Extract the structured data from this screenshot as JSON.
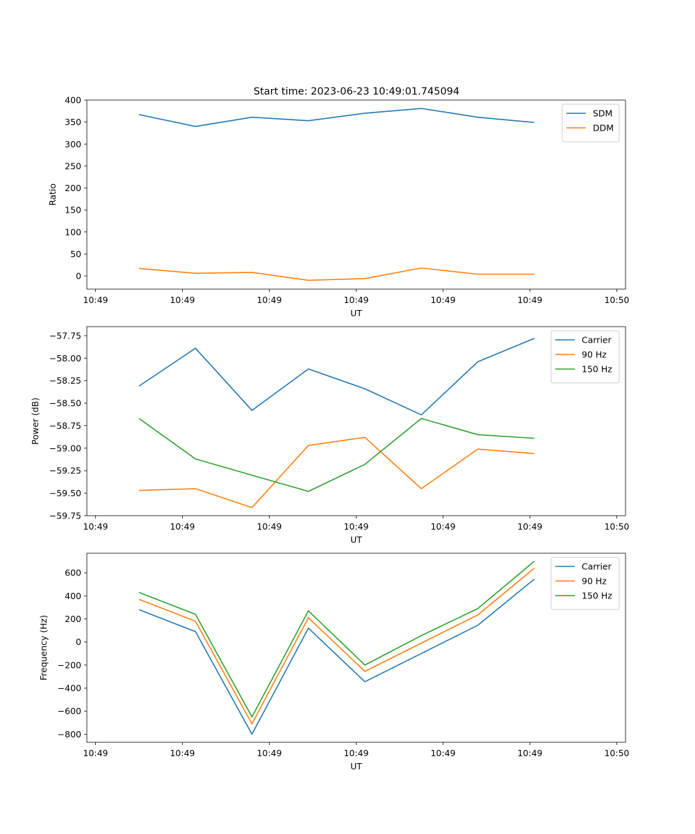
{
  "title": "Start time: 2023-06-23 10:49:01.745094",
  "colors": {
    "blue": "#1f77b4",
    "orange": "#ff7f0e",
    "green": "#2ca02c"
  },
  "chart_data": [
    {
      "type": "line",
      "ylabel": "Ratio",
      "xlabel": "UT",
      "ylim": [
        -30,
        400
      ],
      "yticks": [
        0,
        50,
        100,
        150,
        200,
        250,
        300,
        350,
        400
      ],
      "xlim": [
        0,
        6.2
      ],
      "xticks": [
        0.1,
        1.1,
        2.1,
        3.1,
        4.1,
        5.1,
        6.1
      ],
      "xtick_labels": [
        "10:49",
        "10:49",
        "10:49",
        "10:49",
        "10:49",
        "10:49",
        "10:50"
      ],
      "x": [
        0.6,
        1.25,
        1.9,
        2.55,
        3.2,
        3.85,
        4.5,
        5.15
      ],
      "legend": "top-right",
      "series": [
        {
          "name": "SDM",
          "color": "#1f77b4",
          "values": [
            367,
            340,
            361,
            353,
            370,
            381,
            361,
            349
          ]
        },
        {
          "name": "DDM",
          "color": "#ff7f0e",
          "values": [
            17,
            6,
            8,
            -10,
            -6,
            18,
            4,
            4
          ]
        }
      ]
    },
    {
      "type": "line",
      "ylabel": "Power (dB)",
      "xlabel": "UT",
      "ylim": [
        -59.75,
        -57.65
      ],
      "yticks": [
        -59.75,
        -59.5,
        -59.25,
        -59.0,
        -58.75,
        -58.5,
        -58.25,
        -58.0,
        -57.75
      ],
      "ytick_labels": [
        "−59.75",
        "−59.50",
        "−59.25",
        "−59.00",
        "−58.75",
        "−58.50",
        "−58.25",
        "−58.00",
        "−57.75"
      ],
      "xlim": [
        0,
        6.2
      ],
      "xticks": [
        0.1,
        1.1,
        2.1,
        3.1,
        4.1,
        5.1,
        6.1
      ],
      "xtick_labels": [
        "10:49",
        "10:49",
        "10:49",
        "10:49",
        "10:49",
        "10:49",
        "10:50"
      ],
      "x": [
        0.6,
        1.25,
        1.9,
        2.55,
        3.2,
        3.85,
        4.5,
        5.15
      ],
      "legend": "top-right",
      "series": [
        {
          "name": "Carrier",
          "color": "#1f77b4",
          "values": [
            -58.31,
            -57.89,
            -58.58,
            -58.12,
            -58.34,
            -58.63,
            -58.04,
            -57.78
          ]
        },
        {
          "name": "90 Hz",
          "color": "#ff7f0e",
          "values": [
            -59.47,
            -59.45,
            -59.66,
            -58.97,
            -58.88,
            -59.45,
            -59.01,
            -59.06
          ]
        },
        {
          "name": "150 Hz",
          "color": "#2ca02c",
          "values": [
            -58.67,
            -59.12,
            -59.3,
            -59.48,
            -59.18,
            -58.67,
            -58.85,
            -58.89
          ]
        }
      ]
    },
    {
      "type": "line",
      "ylabel": "Frequency (Hz)",
      "xlabel": "UT",
      "ylim": [
        -870,
        770
      ],
      "yticks": [
        -800,
        -600,
        -400,
        -200,
        0,
        200,
        400,
        600
      ],
      "ytick_labels": [
        "−800",
        "−600",
        "−400",
        "−200",
        "0",
        "200",
        "400",
        "600"
      ],
      "xlim": [
        0,
        6.2
      ],
      "xticks": [
        0.1,
        1.1,
        2.1,
        3.1,
        4.1,
        5.1,
        6.1
      ],
      "xtick_labels": [
        "10:49",
        "10:49",
        "10:49",
        "10:49",
        "10:49",
        "10:49",
        "10:50"
      ],
      "x": [
        0.6,
        1.25,
        1.9,
        2.55,
        3.2,
        3.85,
        4.5,
        5.15
      ],
      "legend": "top-right",
      "series": [
        {
          "name": "Carrier",
          "color": "#1f77b4",
          "values": [
            280,
            90,
            -800,
            120,
            -345,
            -100,
            145,
            545
          ]
        },
        {
          "name": "90 Hz",
          "color": "#ff7f0e",
          "values": [
            370,
            180,
            -710,
            210,
            -255,
            -10,
            235,
            640
          ]
        },
        {
          "name": "150 Hz",
          "color": "#2ca02c",
          "values": [
            430,
            240,
            -650,
            270,
            -200,
            55,
            290,
            700
          ]
        }
      ]
    }
  ]
}
